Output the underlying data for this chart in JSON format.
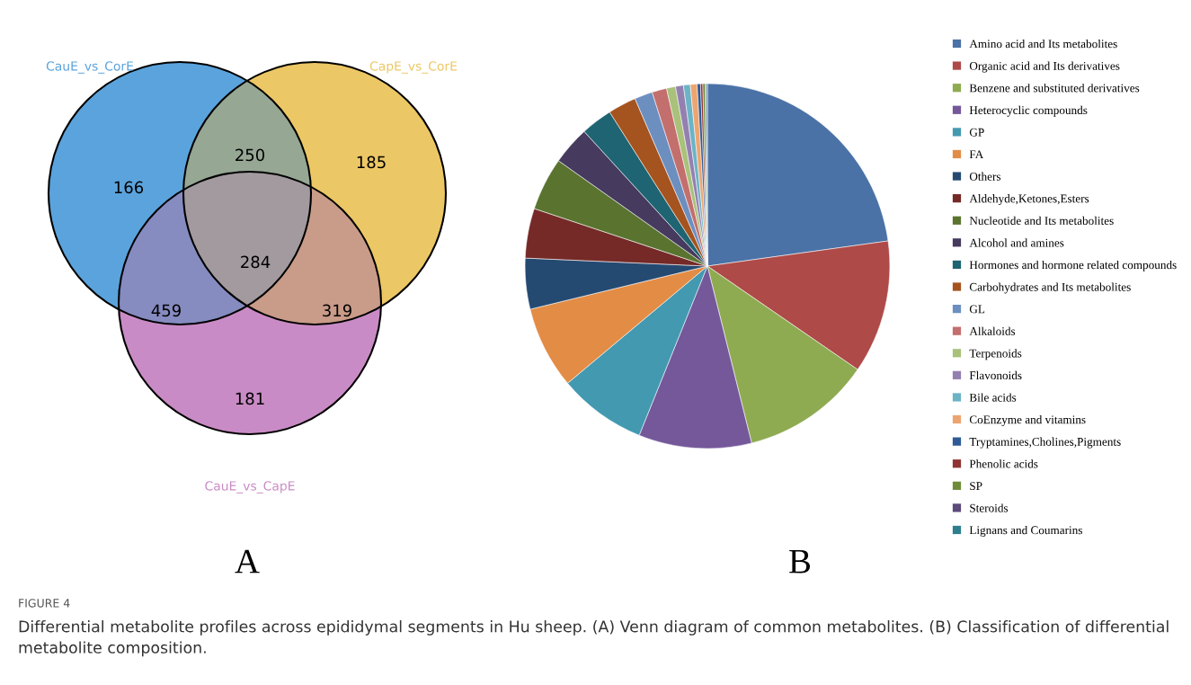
{
  "chart_data": [
    {
      "type": "other",
      "xlabel": "A",
      "series": [
        {
          "name": "CauE_vs_CorE",
          "color": "#5ba3dc"
        },
        {
          "name": "CapE_vs_CorE",
          "color": "#ecc765"
        },
        {
          "name": "CauE_vs_CapE",
          "color": "#c98bc5"
        }
      ],
      "annotations": [
        "166",
        "185",
        "181",
        "250",
        "459",
        "319",
        "284",
        "FIGURE 4",
        "Differential metabolite profiles across epididymal segments in Hu sheep. (A) Venn diagram of common metabolites. (B) Classification of differential metabolite composition."
      ]
    },
    {
      "type": "pie",
      "xlabel": "B",
      "legend": "right",
      "categories": [
        "Amino acid and Its metabolites",
        "Organic acid and Its derivatives",
        "Benzene and substituted derivatives",
        "Heterocyclic compounds",
        "GP",
        "FA",
        "Others",
        "Aldehyde,Ketones,Esters",
        "Nucleotide and Its metabolites",
        "Alcohol and amines",
        "Hormones and hormone related compounds",
        "Carbohydrates and Its metabolites",
        "GL",
        "Alkaloids",
        "Terpenoids",
        "Flavonoids",
        "Bile acids",
        "CoEnzyme and vitamins",
        "Tryptamines,Cholines,Pigments",
        "Phenolic acids",
        "SP",
        "Steroids",
        "Lignans and Coumarins"
      ],
      "values": [
        22.8,
        11.8,
        11.5,
        10.0,
        7.8,
        7.3,
        4.5,
        4.4,
        4.7,
        3.4,
        2.8,
        2.5,
        1.6,
        1.3,
        0.8,
        0.7,
        0.6,
        0.6,
        0.3,
        0.2,
        0.2,
        0.1,
        0.1
      ],
      "colors": [
        "#4a72a6",
        "#ae4a48",
        "#8fab52",
        "#74589a",
        "#4399b0",
        "#e38c45",
        "#254a72",
        "#752a28",
        "#5a7430",
        "#463a5e",
        "#1f6472",
        "#a5531f",
        "#6c8fc0",
        "#c36f6d",
        "#a9c17a",
        "#9480b0",
        "#6cb3c6",
        "#eda56f",
        "#2f5a96",
        "#8e3432",
        "#6e8c38",
        "#5b4a7a",
        "#2e7f8e"
      ]
    }
  ]
}
